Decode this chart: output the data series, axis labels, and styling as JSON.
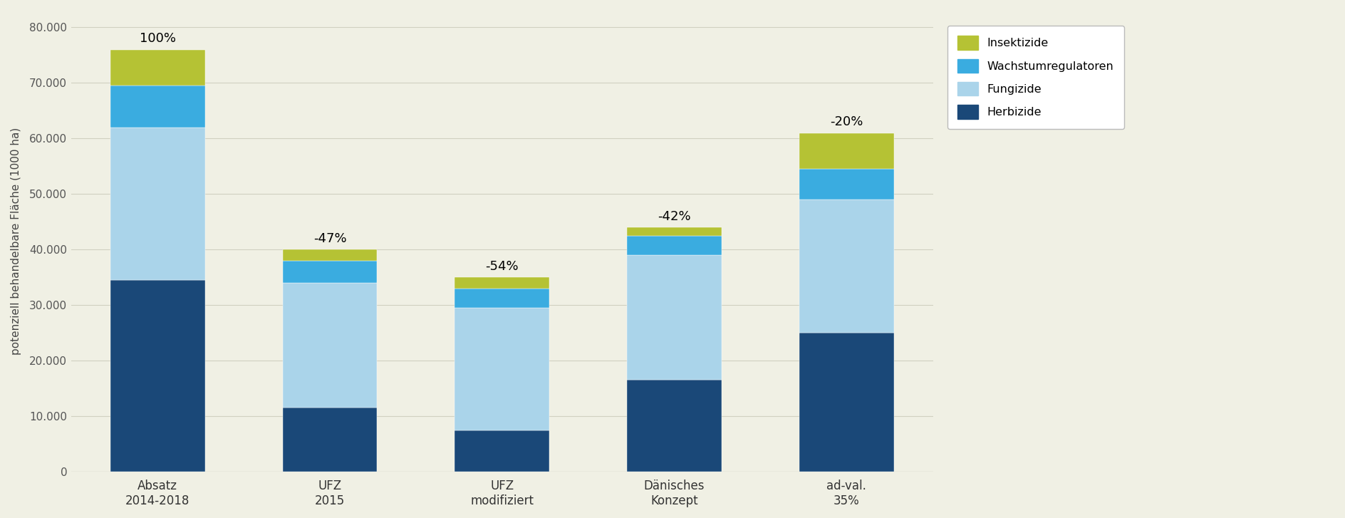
{
  "categories": [
    "Absatz\n2014-2018",
    "UFZ\n2015",
    "UFZ\nmodifiziert",
    "Dänisches\nKonzept",
    "ad-val.\n35%"
  ],
  "herbizide": [
    34500,
    11500,
    7500,
    16500,
    25000
  ],
  "fungizide": [
    27500,
    22500,
    22000,
    22500,
    24000
  ],
  "wachstum": [
    7500,
    4000,
    3500,
    3500,
    5500
  ],
  "insektizide": [
    6500,
    2000,
    2000,
    1500,
    6500
  ],
  "color_herbizide": "#1a4878",
  "color_fungizide": "#aad4ea",
  "color_wachstum": "#3aace0",
  "color_insektizide": "#b5c234",
  "bar_labels": [
    "100%",
    "-47%",
    "-54%",
    "-42%",
    "-20%"
  ],
  "ylabel": "potenziell behandelbare Fläche (1000 ha)",
  "ylim": [
    0,
    83000
  ],
  "yticks": [
    0,
    10000,
    20000,
    30000,
    40000,
    50000,
    60000,
    70000,
    80000
  ],
  "ytick_labels": [
    "0",
    "10.000",
    "20.000",
    "30.000",
    "40.000",
    "50.000",
    "60.000",
    "70.000",
    "80.000"
  ],
  "legend_labels": [
    "Insektizide",
    "Wachstumregulatoren",
    "Fungizide",
    "Herbizide"
  ],
  "background_color": "#f0f0e4",
  "bar_width": 0.55,
  "grid_color": "#d0d0c0"
}
